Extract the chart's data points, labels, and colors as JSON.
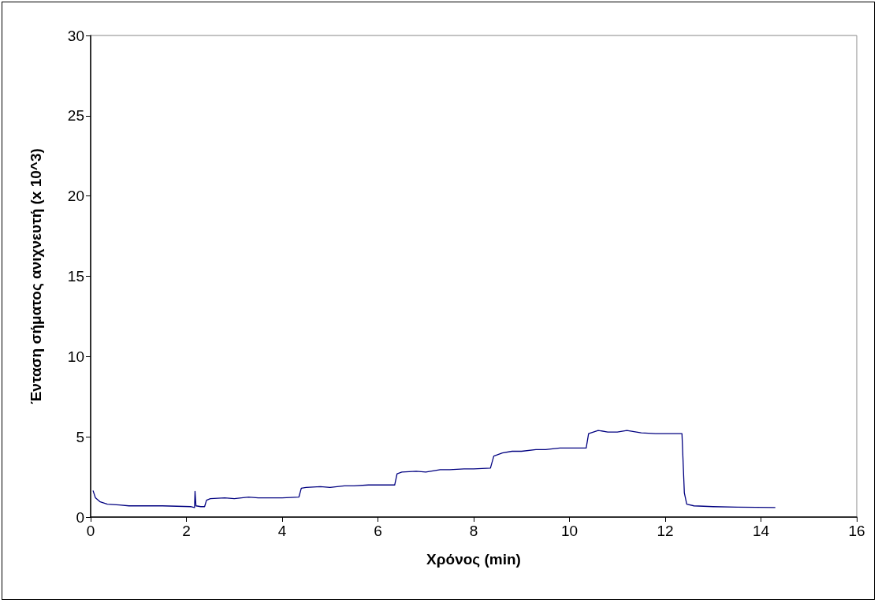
{
  "chart_data": {
    "type": "line",
    "xlabel": "Χρόνος (min)",
    "ylabel": "Ένταση σήματος ανιχνευτή (x 10^3)",
    "xlim": [
      0,
      16
    ],
    "xticks": [
      0,
      2,
      4,
      6,
      8,
      10,
      12,
      14,
      16
    ],
    "ylim": [
      0,
      30
    ],
    "yticks": [
      0,
      5,
      10,
      15,
      20,
      25,
      30
    ],
    "grid": false,
    "marker": "none",
    "line_style": "solid",
    "series": [
      {
        "color": "#000080",
        "x": [
          0.05,
          0.1,
          0.2,
          0.35,
          0.6,
          0.8,
          1.5,
          2.1,
          2.17,
          2.18,
          2.2,
          2.3,
          2.38,
          2.42,
          2.5,
          2.8,
          3,
          3.3,
          3.5,
          3.8,
          4,
          4.35,
          4.4,
          4.5,
          4.8,
          5,
          5.3,
          5.5,
          5.8,
          6,
          6.35,
          6.4,
          6.5,
          6.8,
          7,
          7.3,
          7.5,
          7.8,
          8,
          8.35,
          8.42,
          8.6,
          8.8,
          9,
          9.3,
          9.5,
          9.8,
          10,
          10.35,
          10.4,
          10.6,
          10.8,
          11,
          11.2,
          11.5,
          11.8,
          12,
          12.35,
          12.38,
          12.4,
          12.45,
          12.6,
          13,
          13.5,
          14.3
        ],
        "values": [
          1.65,
          1.2,
          0.95,
          0.8,
          0.75,
          0.7,
          0.7,
          0.65,
          0.6,
          1.6,
          0.7,
          0.65,
          0.65,
          1.05,
          1.15,
          1.2,
          1.15,
          1.25,
          1.2,
          1.2,
          1.2,
          1.25,
          1.8,
          1.85,
          1.9,
          1.85,
          1.95,
          1.95,
          2.0,
          2.0,
          2.0,
          2.7,
          2.8,
          2.85,
          2.8,
          2.95,
          2.95,
          3.0,
          3.0,
          3.05,
          3.8,
          4.0,
          4.1,
          4.1,
          4.2,
          4.2,
          4.3,
          4.3,
          4.3,
          5.2,
          5.4,
          5.3,
          5.3,
          5.4,
          5.25,
          5.2,
          5.2,
          5.2,
          3.0,
          1.5,
          0.8,
          0.7,
          0.65,
          0.62,
          0.6
        ]
      }
    ]
  }
}
